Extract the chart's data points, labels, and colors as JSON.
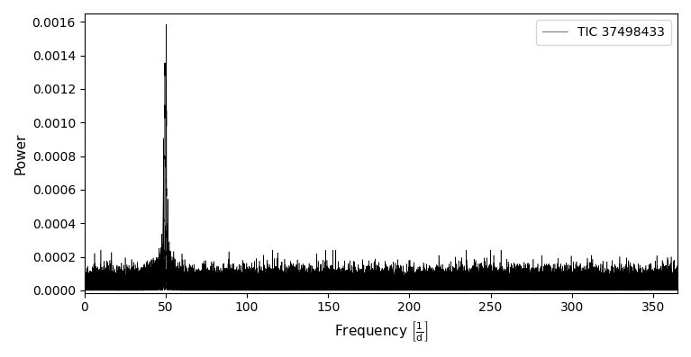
{
  "title": "",
  "xlabel": "Frequency $\\left[\\frac{1}{\\mathrm{d}}\\right]$",
  "ylabel": "Power",
  "legend_label": "TIC 37498433",
  "line_color": "#000000",
  "line_width": 0.5,
  "background_color": "#ffffff",
  "xlim": [
    0,
    365
  ],
  "ylim": [
    -1.5e-05,
    0.00165
  ],
  "yticks": [
    0.0,
    0.0002,
    0.0004,
    0.0006,
    0.0008,
    0.001,
    0.0012,
    0.0014,
    0.0016
  ],
  "xticks": [
    0,
    50,
    100,
    150,
    200,
    250,
    300,
    350
  ],
  "noise_mean": 3e-05,
  "noise_std": 1.8e-05,
  "main_peak_freq": 50.45,
  "main_peak_power": 0.001535,
  "secondary_peaks": [
    {
      "freq": 49.55,
      "power": 0.00123
    },
    {
      "freq": 48.65,
      "power": 0.00079
    },
    {
      "freq": 51.35,
      "power": 0.00041
    },
    {
      "freq": 47.75,
      "power": 0.00022
    },
    {
      "freq": 52.25,
      "power": 0.000175
    },
    {
      "freq": 46.85,
      "power": 0.000155
    },
    {
      "freq": 45.95,
      "power": 0.000135
    },
    {
      "freq": 53.15,
      "power": 0.000115
    },
    {
      "freq": 45.05,
      "power": 0.000105
    },
    {
      "freq": 54.05,
      "power": 9.5e-05
    },
    {
      "freq": 44.15,
      "power": 8.8e-05
    },
    {
      "freq": 55.0,
      "power": 7.8e-05
    },
    {
      "freq": 43.25,
      "power": 7.2e-05
    },
    {
      "freq": 55.9,
      "power": 6.5e-05
    },
    {
      "freq": 42.35,
      "power": 6e-05
    },
    {
      "freq": 56.8,
      "power": 5.5e-05
    },
    {
      "freq": 41.45,
      "power": 5.2e-05
    },
    {
      "freq": 57.7,
      "power": 4.9e-05
    },
    {
      "freq": 40.55,
      "power": 4.6e-05
    },
    {
      "freq": 58.6,
      "power": 4.3e-05
    },
    {
      "freq": 39.65,
      "power": 4.1e-05
    },
    {
      "freq": 38.75,
      "power": 3.9e-05
    },
    {
      "freq": 37.85,
      "power": 3.7e-05
    }
  ],
  "peak_sigma": 0.12,
  "figsize": [
    7.67,
    3.97
  ],
  "dpi": 100
}
